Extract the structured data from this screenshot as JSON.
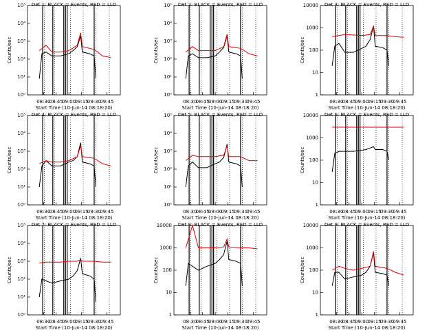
{
  "chart_data": [
    {
      "type": "line",
      "title": "Det 1: BLACK = Events, RED = LLD",
      "x_label": "Start Time (10-Jun-14 08:18:20)",
      "y_label": "Counts/sec",
      "log_y": true,
      "xlim": [
        "08:11",
        "10:01"
      ],
      "xticks": [
        "08:30",
        "08:45",
        "09:00",
        "09:15",
        "09:30",
        "09:45"
      ],
      "ylim": [
        1,
        100000
      ],
      "yticks": [
        {
          "value": 1,
          "label": "10⁰"
        },
        {
          "value": 10,
          "label": "10¹"
        },
        {
          "value": 100,
          "label": "10²"
        },
        {
          "value": 1000,
          "label": "10³"
        },
        {
          "value": 10000,
          "label": "10⁴"
        },
        {
          "value": 100000,
          "label": "10⁵"
        }
      ],
      "solid_lines": [
        "08:29",
        "08:41",
        "08:54",
        "08:56",
        "08:58",
        "09:30"
      ],
      "dotted_lines": [
        "08:31",
        "08:43",
        "09:02",
        "09:17",
        "09:32",
        "09:48"
      ],
      "series": [
        {
          "color": "#000000",
          "x": [
            "08:25",
            "08:28",
            "08:33",
            "08:40",
            "08:50",
            "09:00",
            "09:05",
            "09:10",
            "09:14",
            "09:16",
            "09:25",
            "09:30",
            "09:32"
          ],
          "values": [
            8,
            200,
            250,
            150,
            150,
            200,
            300,
            500,
            2000,
            250,
            200,
            150,
            8
          ]
        },
        {
          "color": "#e00000",
          "x": [
            "08:25",
            "08:33",
            "08:40",
            "08:50",
            "09:00",
            "09:10",
            "09:14",
            "09:16",
            "09:30",
            "09:40",
            "09:50"
          ],
          "values": [
            300,
            600,
            250,
            250,
            300,
            600,
            3000,
            500,
            350,
            150,
            120
          ]
        }
      ]
    },
    {
      "type": "line",
      "title": "Det 2: BLACK = Events, RED = LLD",
      "x_label": "Start Time (10-Jun-14 08:18:20)",
      "y_label": "Counts/sec",
      "log_y": true,
      "xlim": [
        "08:11",
        "10:01"
      ],
      "xticks": [
        "08:30",
        "08:45",
        "09:00",
        "09:15",
        "09:30",
        "09:45"
      ],
      "ylim": [
        1,
        100000
      ],
      "yticks": [
        {
          "value": 1,
          "label": "10⁰"
        },
        {
          "value": 10,
          "label": "10¹"
        },
        {
          "value": 100,
          "label": "10²"
        },
        {
          "value": 1000,
          "label": "10³"
        },
        {
          "value": 10000,
          "label": "10⁴"
        },
        {
          "value": 100000,
          "label": "10⁵"
        }
      ],
      "solid_lines": [
        "08:29",
        "08:41",
        "08:54",
        "08:56",
        "08:58",
        "09:30"
      ],
      "dotted_lines": [
        "08:31",
        "08:43",
        "09:02",
        "09:17",
        "09:32",
        "09:48"
      ],
      "series": [
        {
          "color": "#000000",
          "x": [
            "08:25",
            "08:28",
            "08:33",
            "08:40",
            "08:50",
            "09:00",
            "09:05",
            "09:10",
            "09:14",
            "09:16",
            "09:25",
            "09:30",
            "09:32"
          ],
          "values": [
            8,
            150,
            200,
            120,
            120,
            150,
            250,
            450,
            2000,
            250,
            200,
            150,
            8
          ]
        },
        {
          "color": "#e00000",
          "x": [
            "08:25",
            "08:33",
            "08:40",
            "08:50",
            "09:00",
            "09:10",
            "09:14",
            "09:16",
            "09:30",
            "09:40",
            "09:50"
          ],
          "values": [
            250,
            500,
            300,
            300,
            300,
            500,
            2500,
            500,
            400,
            200,
            150
          ]
        }
      ]
    },
    {
      "type": "line",
      "title": "Det 3: BLACK = Events, RED = LLD",
      "x_label": "Start Time (10-Jun-14 08:18:20)",
      "y_label": "Counts/sec",
      "log_y": true,
      "xlim": [
        "08:11",
        "10:01"
      ],
      "xticks": [
        "08:30",
        "08:45",
        "09:00",
        "09:15",
        "09:30",
        "09:45"
      ],
      "ylim": [
        1,
        10000
      ],
      "yticks": [
        1,
        10,
        100,
        1000,
        10000
      ],
      "solid_lines": [
        "08:29",
        "08:41",
        "08:54",
        "08:56",
        "08:58",
        "09:30"
      ],
      "dotted_lines": [
        "08:31",
        "08:43",
        "09:02",
        "09:17",
        "09:32",
        "09:48"
      ],
      "series": [
        {
          "color": "#000000",
          "x": [
            "08:25",
            "08:28",
            "08:33",
            "08:40",
            "08:50",
            "09:00",
            "09:05",
            "09:10",
            "09:14",
            "09:16",
            "09:25",
            "09:30",
            "09:32"
          ],
          "values": [
            20,
            150,
            200,
            80,
            80,
            120,
            150,
            300,
            1200,
            150,
            130,
            100,
            20
          ]
        },
        {
          "color": "#e00000",
          "x": [
            "08:25",
            "08:33",
            "08:40",
            "08:50",
            "09:00",
            "09:10",
            "09:14",
            "09:16",
            "09:30",
            "09:40",
            "09:50"
          ],
          "values": [
            400,
            450,
            500,
            480,
            450,
            500,
            1200,
            450,
            450,
            400,
            380
          ]
        }
      ]
    },
    {
      "type": "line",
      "title": "Det 4: BLACK = Events, RED = LLD",
      "x_label": "Start Time (10-Jun-14 08:18:20)",
      "y_label": "Counts/sec",
      "log_y": true,
      "xlim": [
        "08:11",
        "10:01"
      ],
      "xticks": [
        "08:30",
        "08:45",
        "09:00",
        "09:15",
        "09:30",
        "09:45"
      ],
      "ylim": [
        1,
        100000
      ],
      "yticks": [
        {
          "value": 1,
          "label": "10⁰"
        },
        {
          "value": 10,
          "label": "10¹"
        },
        {
          "value": 100,
          "label": "10²"
        },
        {
          "value": 1000,
          "label": "10³"
        },
        {
          "value": 10000,
          "label": "10⁴"
        },
        {
          "value": 100000,
          "label": "10⁵"
        }
      ],
      "solid_lines": [
        "08:29",
        "08:41",
        "08:54",
        "08:56",
        "08:58",
        "09:30"
      ],
      "dotted_lines": [
        "08:31",
        "08:43",
        "09:02",
        "09:17",
        "09:32",
        "09:48"
      ],
      "series": [
        {
          "color": "#000000",
          "x": [
            "08:25",
            "08:28",
            "08:33",
            "08:40",
            "08:50",
            "09:00",
            "09:05",
            "09:10",
            "09:14",
            "09:16",
            "09:25",
            "09:30",
            "09:32"
          ],
          "values": [
            10,
            150,
            300,
            150,
            150,
            250,
            300,
            500,
            3000,
            250,
            200,
            150,
            10
          ]
        },
        {
          "color": "#e00000",
          "x": [
            "08:25",
            "08:33",
            "08:40",
            "08:50",
            "09:00",
            "09:10",
            "09:14",
            "09:16",
            "09:30",
            "09:40",
            "09:50"
          ],
          "values": [
            200,
            300,
            250,
            250,
            300,
            500,
            2000,
            500,
            400,
            200,
            150
          ]
        }
      ]
    },
    {
      "type": "line",
      "title": "Det 5: BLACK = Events, RED = LLD",
      "x_label": "Start Time (10-Jun-14 08:18:20)",
      "y_label": "Counts/sec",
      "log_y": true,
      "xlim": [
        "08:11",
        "10:01"
      ],
      "xticks": [
        "08:30",
        "08:45",
        "09:00",
        "09:15",
        "09:30",
        "09:45"
      ],
      "ylim": [
        1,
        100000
      ],
      "yticks": [
        {
          "value": 1,
          "label": "10⁰"
        },
        {
          "value": 10,
          "label": "10¹"
        },
        {
          "value": 100,
          "label": "10²"
        },
        {
          "value": 1000,
          "label": "10³"
        },
        {
          "value": 10000,
          "label": "10⁴"
        },
        {
          "value": 100000,
          "label": "10⁵"
        }
      ],
      "solid_lines": [
        "08:29",
        "08:41",
        "08:54",
        "08:56",
        "08:58",
        "09:30"
      ],
      "dotted_lines": [
        "08:31",
        "08:43",
        "09:02",
        "09:17",
        "09:32",
        "09:48"
      ],
      "series": [
        {
          "color": "#000000",
          "x": [
            "08:25",
            "08:28",
            "08:33",
            "08:40",
            "08:50",
            "09:00",
            "09:05",
            "09:10",
            "09:14",
            "09:16",
            "09:25",
            "09:30",
            "09:32"
          ],
          "values": [
            10,
            150,
            250,
            120,
            120,
            200,
            250,
            450,
            2500,
            250,
            200,
            150,
            10
          ]
        },
        {
          "color": "#e00000",
          "x": [
            "08:25",
            "08:33",
            "08:40",
            "08:50",
            "09:00",
            "09:10",
            "09:14",
            "09:16",
            "09:30",
            "09:40",
            "09:50"
          ],
          "values": [
            300,
            600,
            500,
            500,
            500,
            600,
            2000,
            500,
            500,
            300,
            300
          ]
        }
      ]
    },
    {
      "type": "line",
      "title": "Det 6: BLACK = Events, RED = LLD",
      "x_label": "Start Time (10-Jun-14 08:18:20)",
      "y_label": "Counts/sec",
      "log_y": true,
      "xlim": [
        "08:11",
        "10:01"
      ],
      "xticks": [
        "08:30",
        "08:45",
        "09:00",
        "09:15",
        "09:30",
        "09:45"
      ],
      "ylim": [
        1,
        10000
      ],
      "yticks": [
        1,
        10,
        100,
        1000,
        10000
      ],
      "solid_lines": [
        "08:29",
        "08:41",
        "08:54",
        "08:56",
        "08:58",
        "09:30"
      ],
      "dotted_lines": [
        "08:31",
        "08:43",
        "09:02",
        "09:17",
        "09:32",
        "09:48"
      ],
      "series": [
        {
          "color": "#000000",
          "x": [
            "08:25",
            "08:28",
            "08:33",
            "08:40",
            "08:50",
            "09:00",
            "09:05",
            "09:10",
            "09:14",
            "09:16",
            "09:25",
            "09:30",
            "09:32"
          ],
          "values": [
            30,
            200,
            250,
            250,
            250,
            280,
            300,
            350,
            400,
            300,
            300,
            250,
            100
          ]
        },
        {
          "color": "#e00000",
          "x": [
            "08:25",
            "08:33",
            "08:40",
            "08:50",
            "09:00",
            "09:10",
            "09:14",
            "09:16",
            "09:30",
            "09:40",
            "09:50"
          ],
          "values": [
            3000,
            3000,
            3000,
            3000,
            3000,
            3000,
            3000,
            3000,
            3000,
            3000,
            3000
          ]
        }
      ]
    },
    {
      "type": "line",
      "title": "Det 7: BLACK = Events, RED = LLD",
      "x_label": "Start Time (10-Jun-14 08:18:20)",
      "y_label": "Counts/sec",
      "log_y": true,
      "xlim": [
        "08:11",
        "10:01"
      ],
      "xticks": [
        "08:30",
        "08:45",
        "09:00",
        "09:15",
        "09:30",
        "09:45"
      ],
      "ylim": [
        1,
        100000
      ],
      "yticks": [
        {
          "value": 1,
          "label": "10⁰"
        },
        {
          "value": 10,
          "label": "10¹"
        },
        {
          "value": 100,
          "label": "10²"
        },
        {
          "value": 1000,
          "label": "10³"
        },
        {
          "value": 10000,
          "label": "10⁴"
        },
        {
          "value": 100000,
          "label": "10⁵"
        }
      ],
      "solid_lines": [
        "08:29",
        "08:41",
        "08:54",
        "08:56",
        "08:58",
        "09:30"
      ],
      "dotted_lines": [
        "08:31",
        "08:43",
        "09:02",
        "09:17",
        "09:32",
        "09:48"
      ],
      "series": [
        {
          "color": "#000000",
          "x": [
            "08:25",
            "08:28",
            "08:33",
            "08:40",
            "08:50",
            "09:00",
            "09:05",
            "09:10",
            "09:14",
            "09:16",
            "09:25",
            "09:30",
            "09:32"
          ],
          "values": [
            10,
            100,
            80,
            60,
            80,
            100,
            150,
            300,
            1500,
            200,
            150,
            100,
            5
          ]
        },
        {
          "color": "#e00000",
          "x": [
            "08:25",
            "08:33",
            "08:40",
            "08:50",
            "09:00",
            "09:10",
            "09:14",
            "09:16",
            "09:30",
            "09:40",
            "09:50"
          ],
          "values": [
            800,
            900,
            900,
            900,
            1000,
            1000,
            1200,
            1000,
            1000,
            900,
            900
          ]
        }
      ]
    },
    {
      "type": "line",
      "title": "Det 8: BLACK = Events, RED = LLD",
      "x_label": "Start Time (10-Jun-14 08:18:20)",
      "y_label": "Counts/sec",
      "log_y": true,
      "xlim": [
        "08:11",
        "10:01"
      ],
      "xticks": [
        "08:30",
        "08:45",
        "09:00",
        "09:15",
        "09:30",
        "09:45"
      ],
      "ylim": [
        1,
        10000
      ],
      "yticks": [
        1,
        10,
        100,
        1000,
        10000
      ],
      "solid_lines": [
        "08:29",
        "08:41",
        "08:54",
        "08:56",
        "08:58",
        "09:30"
      ],
      "dotted_lines": [
        "08:31",
        "08:43",
        "09:02",
        "09:17",
        "09:32",
        "09:48"
      ],
      "series": [
        {
          "color": "#000000",
          "x": [
            "08:25",
            "08:28",
            "08:33",
            "08:40",
            "08:50",
            "09:00",
            "09:05",
            "09:10",
            "09:14",
            "09:16",
            "09:25",
            "09:30",
            "09:32"
          ],
          "values": [
            20,
            200,
            150,
            100,
            150,
            200,
            300,
            500,
            2000,
            300,
            250,
            200,
            20
          ]
        },
        {
          "color": "#e00000",
          "x": [
            "08:25",
            "08:33",
            "08:40",
            "08:50",
            "09:00",
            "09:10",
            "09:14",
            "09:16",
            "09:30",
            "09:40",
            "09:50"
          ],
          "values": [
            1000,
            10000,
            1000,
            1000,
            1000,
            1100,
            2500,
            1100,
            1000,
            1000,
            900
          ]
        }
      ]
    },
    {
      "type": "line",
      "title": "Det 9: BLACK = Events, RED = LLD",
      "x_label": "Start Time (10-Jun-14 08:18:20)",
      "y_label": "Counts/sec",
      "log_y": true,
      "xlim": [
        "08:11",
        "10:01"
      ],
      "xticks": [
        "08:30",
        "08:45",
        "09:00",
        "09:15",
        "09:30",
        "09:45"
      ],
      "ylim": [
        1,
        10000
      ],
      "yticks": [
        1,
        10,
        100,
        1000,
        10000
      ],
      "solid_lines": [
        "08:29",
        "08:41",
        "08:54",
        "08:56",
        "08:58",
        "09:30"
      ],
      "dotted_lines": [
        "08:31",
        "08:43",
        "09:02",
        "09:17",
        "09:32",
        "09:48"
      ],
      "series": [
        {
          "color": "#000000",
          "x": [
            "08:25",
            "08:28",
            "08:33",
            "08:40",
            "08:50",
            "09:00",
            "09:05",
            "09:10",
            "09:14",
            "09:16",
            "09:25",
            "09:30",
            "09:32"
          ],
          "values": [
            20,
            80,
            80,
            40,
            50,
            60,
            80,
            150,
            600,
            80,
            70,
            60,
            20
          ]
        },
        {
          "color": "#e00000",
          "x": [
            "08:25",
            "08:33",
            "08:40",
            "08:50",
            "09:00",
            "09:10",
            "09:14",
            "09:16",
            "09:30",
            "09:40",
            "09:50"
          ],
          "values": [
            100,
            150,
            120,
            100,
            120,
            150,
            700,
            150,
            120,
            80,
            60
          ]
        }
      ]
    }
  ]
}
